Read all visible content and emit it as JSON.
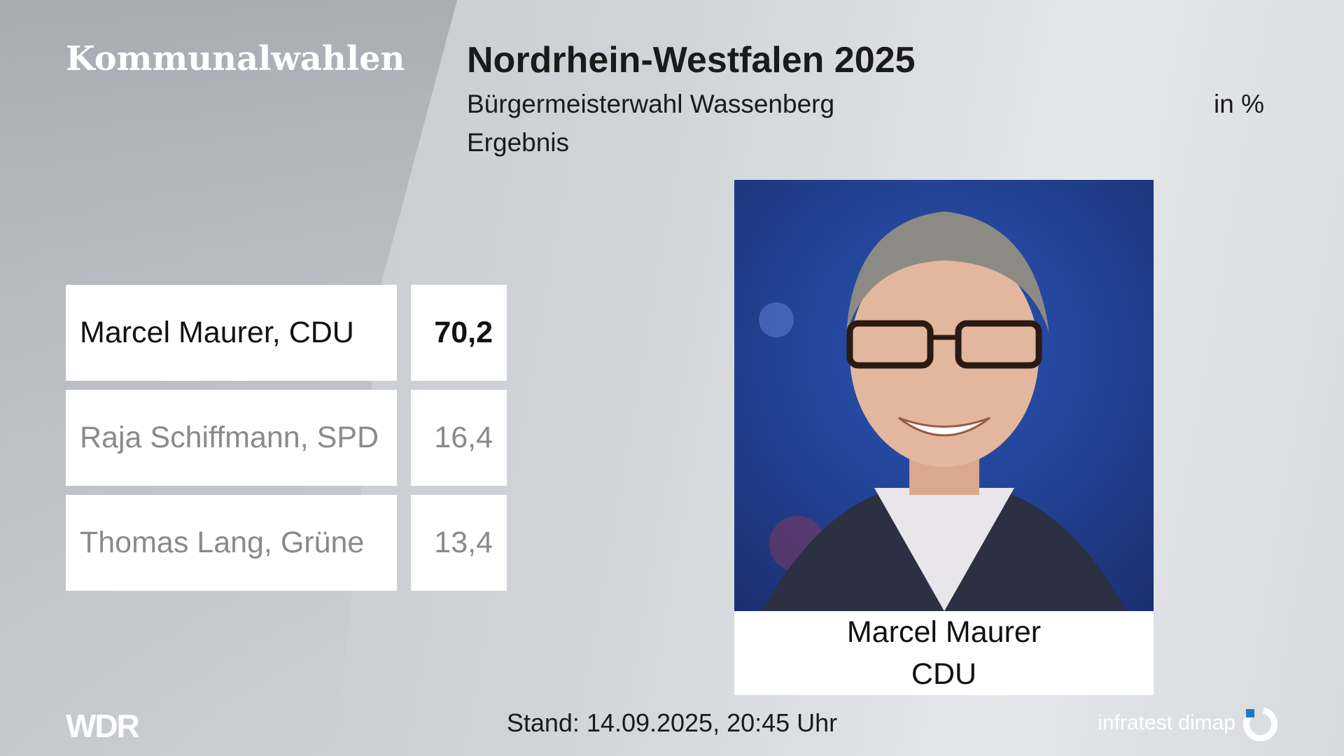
{
  "header": {
    "program": "Kommunalwahlen",
    "title": "Nordrhein-Westfalen 2025",
    "subtitle": "Bürgermeisterwahl Wassenberg",
    "unit": "in %",
    "status": "Ergebnis"
  },
  "results": {
    "rows": [
      [
        "Marcel Maurer, CDU",
        "70,2"
      ],
      [
        "Raja Schiffmann, SPD",
        "16,4"
      ],
      [
        "Thomas Lang, Grüne",
        "13,4"
      ]
    ]
  },
  "winner": {
    "name": "Marcel Maurer",
    "party": "CDU"
  },
  "footer": {
    "broadcaster": "WDR",
    "timestamp": "Stand: 14.09.2025, 20:45 Uhr",
    "source": "infratest dimap"
  }
}
